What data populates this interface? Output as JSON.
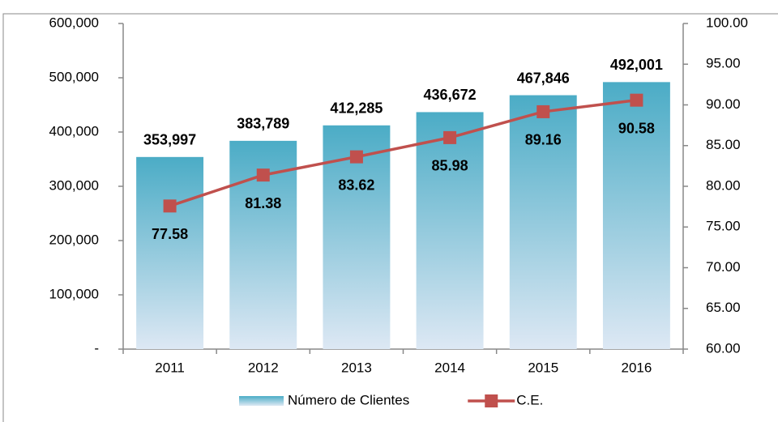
{
  "chart_data": {
    "type": "bar",
    "categories": [
      "2011",
      "2012",
      "2013",
      "2014",
      "2015",
      "2016"
    ],
    "series": [
      {
        "name": "Número de Clientes",
        "type": "bar",
        "color": "#4bacc6",
        "values": [
          353997,
          383789,
          412285,
          436672,
          467846,
          492001
        ],
        "value_labels": [
          "353,997",
          "383,789",
          "412,285",
          "436,672",
          "467,846",
          "492,001"
        ]
      },
      {
        "name": "C.E.",
        "type": "line",
        "axis": "y2",
        "color": "#c0504d",
        "values": [
          77.58,
          81.38,
          83.62,
          85.98,
          89.16,
          90.58
        ]
      }
    ],
    "ylim": [
      0,
      600000
    ],
    "yticks": [
      {
        "value": 0,
        "label": "-"
      },
      {
        "value": 100000,
        "label": "100,000"
      },
      {
        "value": 200000,
        "label": "200,000"
      },
      {
        "value": 300000,
        "label": "300,000"
      },
      {
        "value": 400000,
        "label": "400,000"
      },
      {
        "value": 500000,
        "label": "500,000"
      },
      {
        "value": 600000,
        "label": "600,000"
      }
    ],
    "y2lim": [
      60,
      100
    ],
    "y2ticks": [
      {
        "value": 60,
        "label": "60.00"
      },
      {
        "value": 65,
        "label": "65.00"
      },
      {
        "value": 70,
        "label": "70.00"
      },
      {
        "value": 75,
        "label": "75.00"
      },
      {
        "value": 80,
        "label": "80.00"
      },
      {
        "value": 85,
        "label": "85.00"
      },
      {
        "value": 90,
        "label": "90.00"
      },
      {
        "value": 95,
        "label": "95.00"
      },
      {
        "value": 100,
        "label": "100.00"
      }
    ],
    "legend": "bottom",
    "grid": false
  }
}
